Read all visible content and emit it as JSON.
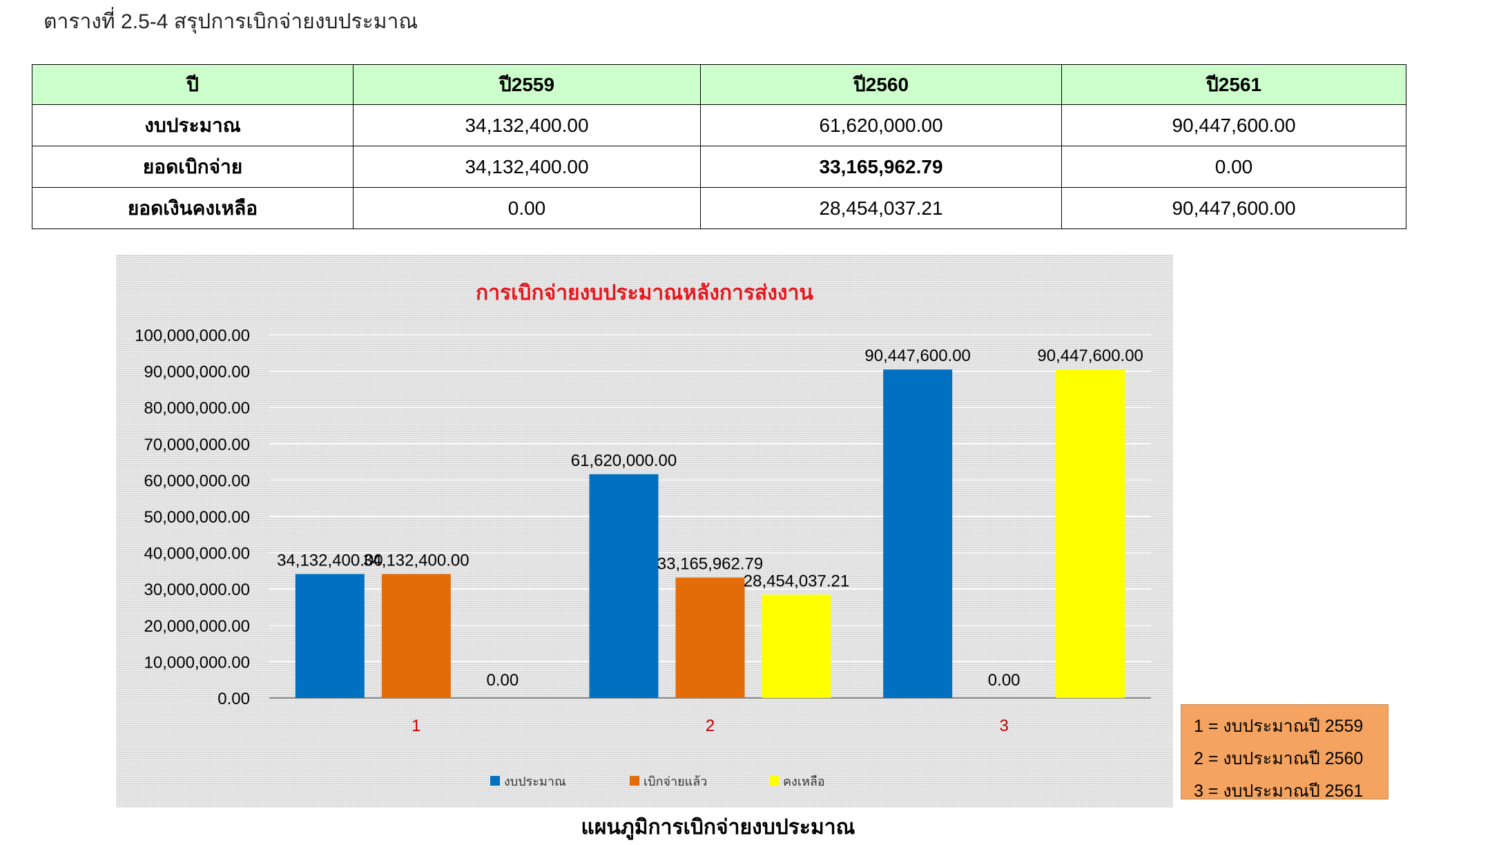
{
  "document": {
    "title": "ตารางที่ 2.5-4 สรุปการเบิกจ่ายงบประมาณ",
    "caption": "แผนภูมิการเบิกจ่ายงบประมาณ"
  },
  "table": {
    "headers": [
      "ปี",
      "ปี2559",
      "ปี2560",
      "ปี2561"
    ],
    "rows": [
      {
        "label": "งบประมาณ",
        "values": [
          "34,132,400.00",
          "61,620,000.00",
          "90,447,600.00"
        ]
      },
      {
        "label": "ยอดเบิกจ่าย",
        "values": [
          "34,132,400.00",
          "33,165,962.79",
          "0.00"
        ]
      },
      {
        "label": "ยอดเงินคงเหลือ",
        "values": [
          "0.00",
          "28,454,037.21",
          "90,447,600.00"
        ]
      }
    ]
  },
  "note_box": {
    "lines": [
      "1 = งบประมาณปี 2559",
      "2 = งบประมาณปี 2560",
      "3 = งบประมาณปี 2561"
    ],
    "color": "#f4a460"
  },
  "chart_data": {
    "type": "bar",
    "title": "การเบิกจ่ายงบประมาณหลังการส่งงาน",
    "categories": [
      "1",
      "2",
      "3"
    ],
    "series": [
      {
        "name": "งบประมาณ",
        "color": "#0070c0",
        "values": [
          34132400.0,
          61620000.0,
          90447600.0
        ],
        "labels": [
          "34,132,400.00",
          "61,620,000.00",
          "90,447,600.00"
        ]
      },
      {
        "name": "เบิกจ่ายแล้ว",
        "color": "#e36c09",
        "values": [
          34132400.0,
          33165962.79,
          0
        ],
        "labels": [
          "34,132,400.00",
          "33,165,962.79",
          "0.00"
        ]
      },
      {
        "name": "คงเหลือ",
        "color": "#ffff00",
        "values": [
          0,
          28454037.21,
          90447600.0
        ],
        "labels": [
          "0.00",
          "28,454,037.21",
          "90,447,600.00"
        ]
      }
    ],
    "ylim": [
      0,
      100000000
    ],
    "yticks": [
      "0.00",
      "10,000,000.00",
      "20,000,000.00",
      "30,000,000.00",
      "40,000,000.00",
      "50,000,000.00",
      "60,000,000.00",
      "70,000,000.00",
      "80,000,000.00",
      "90,000,000.00",
      "100,000,000.00"
    ],
    "grid": true,
    "legend": "bottom"
  }
}
